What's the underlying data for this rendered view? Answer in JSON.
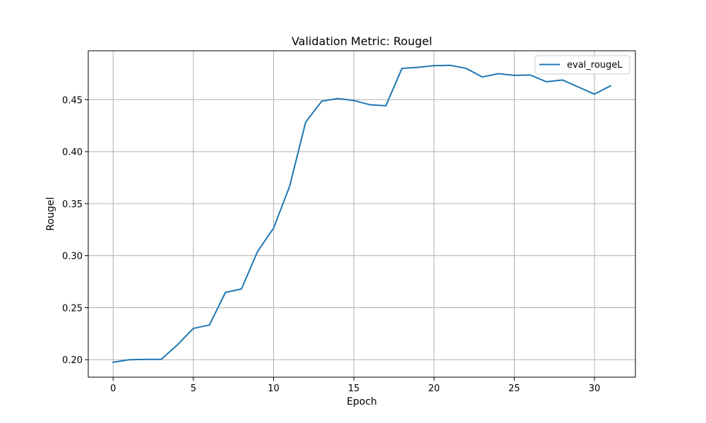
{
  "chart_data": {
    "type": "line",
    "title": "Validation Metric: Rougel",
    "xlabel": "Epoch",
    "ylabel": "Rougel",
    "xlim": [
      -1.55,
      32.55
    ],
    "ylim": [
      0.1832,
      0.497
    ],
    "xticks": [
      0,
      5,
      10,
      15,
      20,
      25,
      30
    ],
    "yticks": [
      0.2,
      0.25,
      0.3,
      0.35,
      0.4,
      0.45
    ],
    "ytick_labels": [
      "0.20",
      "0.25",
      "0.30",
      "0.35",
      "0.40",
      "0.45"
    ],
    "grid": true,
    "legend_position": "top-right",
    "series": [
      {
        "name": "eval_rougeL",
        "color": "#1f77b4",
        "x": [
          0,
          1,
          2,
          3,
          4,
          5,
          6,
          7,
          8,
          9,
          10,
          11,
          12,
          13,
          14,
          15,
          16,
          17,
          18,
          19,
          20,
          21,
          22,
          23,
          24,
          25,
          26,
          27,
          28,
          29,
          30,
          31
        ],
        "y": [
          0.1975,
          0.2,
          0.2003,
          0.2003,
          0.2142,
          0.2301,
          0.2333,
          0.2647,
          0.268,
          0.304,
          0.3265,
          0.3667,
          0.4284,
          0.4485,
          0.4511,
          0.4492,
          0.4451,
          0.4441,
          0.4801,
          0.4811,
          0.4827,
          0.483,
          0.4801,
          0.4718,
          0.475,
          0.4734,
          0.4737,
          0.4672,
          0.4689,
          0.4621,
          0.4553,
          0.4633
        ]
      }
    ]
  }
}
